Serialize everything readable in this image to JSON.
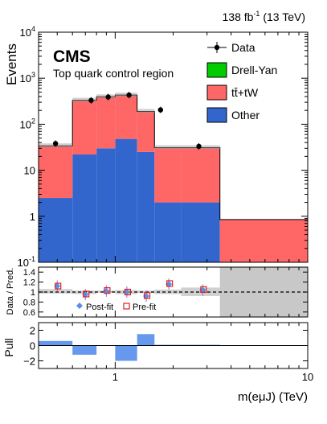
{
  "header": {
    "lumi_value": "138 fb",
    "lumi_exp": "-1",
    "lumi_energy": " (13 TeV)",
    "experiment": "CMS",
    "region": "Top quark control region"
  },
  "chart_data": [
    {
      "panel": "main",
      "type": "bar",
      "ylabel": "Events",
      "yscale": "log",
      "ylim": [
        0.1,
        10000
      ],
      "xscale": "log",
      "xlim": [
        0.4,
        10
      ],
      "yticks": [
        {
          "base": "10",
          "exp": "-1",
          "value": 0.1
        },
        {
          "base": "1",
          "exp": "",
          "value": 1
        },
        {
          "base": "10",
          "exp": "",
          "value": 10
        },
        {
          "base": "10",
          "exp": "2",
          "value": 100
        },
        {
          "base": "10",
          "exp": "3",
          "value": 1000
        },
        {
          "base": "10",
          "exp": "4",
          "value": 10000
        }
      ],
      "bin_edges": [
        0.4,
        0.6,
        0.8,
        1.0,
        1.3,
        1.6,
        2.2,
        3.5,
        10.0
      ],
      "series": [
        {
          "name": "Other",
          "color": "#3366cc",
          "values": [
            2.5,
            22,
            30,
            48,
            25,
            2.0,
            2.0,
            0.1
          ]
        },
        {
          "name": "Drell-Yan",
          "color": "#00cc00",
          "values": [
            0,
            0,
            0,
            0,
            0,
            0,
            0,
            0
          ]
        },
        {
          "name": "tt̄+tW",
          "color": "#ff6666",
          "values": [
            31.5,
            310,
            365,
            382,
            165,
            29,
            29,
            0.75
          ]
        }
      ],
      "data": {
        "name": "Data",
        "x": [
          0.49,
          0.75,
          0.92,
          1.18,
          1.72,
          2.72
        ],
        "y": [
          38,
          330,
          390,
          430,
          205,
          33
        ]
      },
      "legend": {
        "placement": "top-right",
        "entries": [
          "Data",
          "Drell-Yan",
          "tt̄+tW",
          "Other"
        ]
      }
    },
    {
      "panel": "ratio",
      "type": "scatter",
      "ylabel": "Data / Pred.",
      "ylim": [
        0.5,
        1.5
      ],
      "yticks": [
        "0.6",
        "0.8",
        "1",
        "1.2",
        "1.4"
      ],
      "uncertainty_band": {
        "bins": [
          [
            0.4,
            0.6,
            0.97,
            1.06
          ],
          [
            0.6,
            0.8,
            0.96,
            1.03
          ],
          [
            0.8,
            1.0,
            0.99,
            1.03
          ],
          [
            1.0,
            1.3,
            0.96,
            1.04
          ],
          [
            1.3,
            1.6,
            0.98,
            1.03
          ],
          [
            1.6,
            2.2,
            0.96,
            1.05
          ],
          [
            2.2,
            3.5,
            0.92,
            1.09
          ],
          [
            3.5,
            10.0,
            0.5,
            1.5
          ]
        ]
      },
      "series": [
        {
          "name": "Post-fit",
          "color": "#5a8fe8",
          "x": [
            0.5,
            0.7,
            0.9,
            1.15,
            1.45,
            1.9,
            2.85
          ],
          "y": [
            1.12,
            0.95,
            1.02,
            1.0,
            0.92,
            1.16,
            1.04
          ]
        },
        {
          "name": "Pre-fit",
          "color": "#e02020",
          "x": [
            0.5,
            0.7,
            0.9,
            1.15,
            1.45,
            1.9,
            2.85
          ],
          "y": [
            1.12,
            0.96,
            1.03,
            1.0,
            0.93,
            1.17,
            1.05
          ]
        }
      ],
      "legend_labels": [
        "Post-fit",
        "Pre-fit"
      ]
    },
    {
      "panel": "pull",
      "type": "bar",
      "ylabel": "Pull",
      "ylim": [
        -3,
        3
      ],
      "yticks": [
        "−2",
        "0",
        "2"
      ],
      "xlabel": "m(eμJ) (TeV)",
      "xticks": [
        "1",
        "10"
      ],
      "bins": [
        [
          0.4,
          0.6,
          0.6
        ],
        [
          0.6,
          0.8,
          -1.2
        ],
        [
          0.8,
          1.0,
          0.0
        ],
        [
          1.0,
          1.3,
          -2.0
        ],
        [
          1.3,
          1.6,
          1.5
        ],
        [
          1.6,
          2.2,
          0.1
        ],
        [
          2.2,
          3.5,
          0.1
        ],
        [
          3.5,
          10.0,
          0.0
        ]
      ],
      "color": "#6699ee"
    }
  ]
}
